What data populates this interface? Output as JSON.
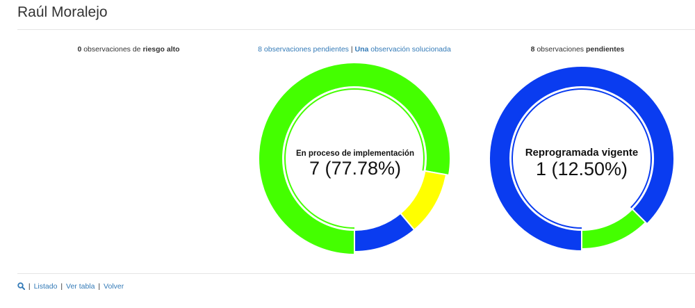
{
  "header": {
    "title": "Raúl Moralejo"
  },
  "left": {
    "count": "0",
    "text_mid": " observaciones de ",
    "strong": "riesgo alto"
  },
  "mid": {
    "pending_link": "8 observaciones pendientes",
    "separator": " | ",
    "solved_strong": "Una",
    "solved_link": " observación solucionada",
    "center_label": "En proceso de implementación",
    "center_value": "7 (77.78%)"
  },
  "right": {
    "count": "8",
    "text_mid": " observaciones ",
    "strong": "pendientes",
    "center_label": "Reprogramada vigente",
    "center_value": "1 (12.50%)"
  },
  "chart_data": [
    {
      "type": "pie",
      "values": [
        7,
        1,
        1
      ],
      "colors": [
        "#44ff00",
        "#ffff00",
        "#0a3cf0"
      ],
      "highlighted": 0
    },
    {
      "type": "pie",
      "values": [
        7,
        1
      ],
      "colors": [
        "#0a3cf0",
        "#44ff00"
      ],
      "highlighted": 0
    }
  ],
  "footer": {
    "icon": "search-icon",
    "sep": "|",
    "listado": "Listado",
    "ver_tabla": "Ver tabla",
    "volver": "Volver"
  }
}
